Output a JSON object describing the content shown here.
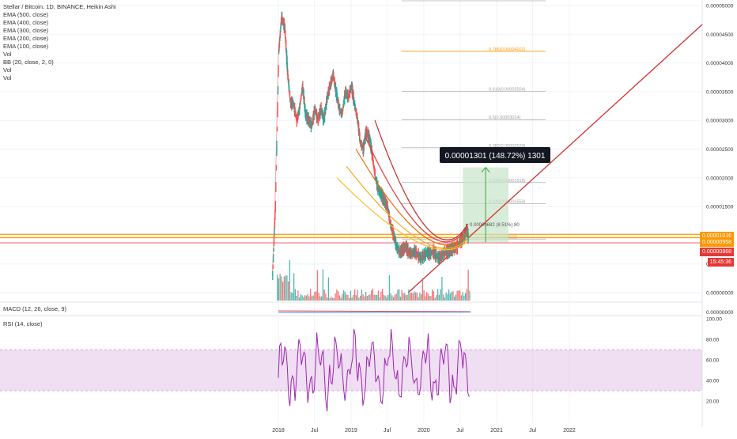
{
  "header": {
    "title": "Stellar / Bitcoin, 1D, BINANCE, Heikin Ashi",
    "indicators": [
      "EMA (500, close)",
      "EMA (400, close)",
      "EMA (300, close)",
      "EMA (200, close)",
      "EMA (100, close)",
      "Vol",
      "BB (20, close, 2, 0)",
      "Vol",
      "Vol"
    ]
  },
  "macd_label": "MACD (12, 26, close, 9)",
  "rsi_label": "RSI (14, close)",
  "price_tags": {
    "tag1": "0.00001016",
    "tag2": "0.00000958",
    "tag3": "0.00000868",
    "tag4": "15:45:36"
  },
  "measure": {
    "label": "0.00001301 (148.72%) 1301",
    "small_label": "0.00000682 (8.51%) 80"
  },
  "colors": {
    "bull": "#26a69a",
    "bear": "#ef5350",
    "ema500": "#c62828",
    "ema400": "#e53935",
    "ema300": "#ef6c00",
    "ema200": "#f9a825",
    "ema100": "#fbc02d",
    "trendline": "#d32f2f",
    "fib_line": "#ff9800",
    "rsi": "#9c27b0",
    "rsi_band": "#e1bee7",
    "measure_fill": "#c8e6c9",
    "measure_line": "#43a047",
    "tag_orange": "#ff9800",
    "tag_red": "#e53935"
  },
  "chart_data": {
    "type": "line",
    "title": "Stellar / Bitcoin, 1D, BINANCE, Heikin Ashi",
    "x_ticks": [
      "2018",
      "Jul",
      "2019",
      "Jul",
      "2020",
      "Jul",
      "2021",
      "Jul",
      "2022"
    ],
    "y_ticks": [
      "0.00005000",
      "0.00004500",
      "0.00004000",
      "0.00003500",
      "0.00003000",
      "0.00002500",
      "0.00002000",
      "0.00001500",
      "0.00001000",
      "0.00000500",
      "0.00000000"
    ],
    "ylim": [
      0,
      5e-05
    ],
    "fib_levels": [
      {
        "label": "0.786(0.00004202)",
        "value": 4.202e-05
      },
      {
        "label": "0.618(0.00003504)",
        "value": 3.504e-05
      },
      {
        "label": "0.5(0.00003014)",
        "value": 3.014e-05
      },
      {
        "label": "0.382(0.00002524)",
        "value": 2.524e-05
      },
      {
        "label": "0.236(0.00001918)",
        "value": 1.918e-05
      },
      {
        "label": "0.146(0.00001550)",
        "value": 1.55e-05
      },
      {
        "label": "0(0.00000933)",
        "value": 9.33e-06
      }
    ],
    "price_series": {
      "name": "XLMBTC",
      "dates": [
        "2017-12-01",
        "2017-12-15",
        "2018-01-01",
        "2018-01-15",
        "2018-02-01",
        "2018-02-15",
        "2018-03-01",
        "2018-03-15",
        "2018-04-01",
        "2018-04-15",
        "2018-05-01",
        "2018-05-15",
        "2018-06-01",
        "2018-06-15",
        "2018-07-01",
        "2018-07-15",
        "2018-08-01",
        "2018-08-15",
        "2018-09-01",
        "2018-09-15",
        "2018-10-01",
        "2018-10-15",
        "2018-11-01",
        "2018-11-15",
        "2018-12-01",
        "2018-12-15",
        "2019-01-01",
        "2019-01-15",
        "2019-02-01",
        "2019-02-15",
        "2019-03-01",
        "2019-03-15",
        "2019-04-01",
        "2019-04-15",
        "2019-05-01",
        "2019-05-15",
        "2019-06-01",
        "2019-06-15",
        "2019-07-01",
        "2019-07-15",
        "2019-08-01",
        "2019-08-15",
        "2019-09-01",
        "2019-09-15",
        "2019-10-01",
        "2019-10-15",
        "2019-11-01",
        "2019-11-15",
        "2019-12-01",
        "2019-12-15",
        "2020-01-01",
        "2020-01-15",
        "2020-02-01",
        "2020-02-15",
        "2020-03-01",
        "2020-03-15",
        "2020-04-01",
        "2020-04-15",
        "2020-05-01",
        "2020-05-15",
        "2020-06-01",
        "2020-06-15",
        "2020-07-01",
        "2020-07-15",
        "2020-08-01",
        "2020-08-10"
      ],
      "values": [
        3e-06,
        1.5e-05,
        4.2e-05,
        4.8e-05,
        4.6e-05,
        3.8e-05,
        3.3e-05,
        3.3e-05,
        3e-05,
        3.2e-05,
        3.6e-05,
        3.1e-05,
        3e-05,
        2.9e-05,
        3.2e-05,
        3e-05,
        3.2e-05,
        3e-05,
        3.4e-05,
        3.6e-05,
        3.8e-05,
        3.5e-05,
        3.2e-05,
        3.1e-05,
        3.5e-05,
        3.4e-05,
        3.6e-05,
        3.3e-05,
        3e-05,
        2.6e-05,
        2.5e-05,
        2.8e-05,
        2.7e-05,
        2.4e-05,
        2e-05,
        1.8e-05,
        1.7e-05,
        1.6e-05,
        1.5e-05,
        1.2e-05,
        1e-05,
        8e-06,
        7e-06,
        7.5e-06,
        8e-06,
        7e-06,
        6.8e-06,
        7.2e-06,
        6.5e-06,
        6e-06,
        6.5e-06,
        7e-06,
        6.8e-06,
        7.2e-06,
        6.5e-06,
        6e-06,
        6.5e-06,
        7e-06,
        7.2e-06,
        7.5e-06,
        7.8e-06,
        8e-06,
        9e-06,
        9.5e-06,
        1.1e-05,
        9.5e-06
      ]
    }
  }
}
